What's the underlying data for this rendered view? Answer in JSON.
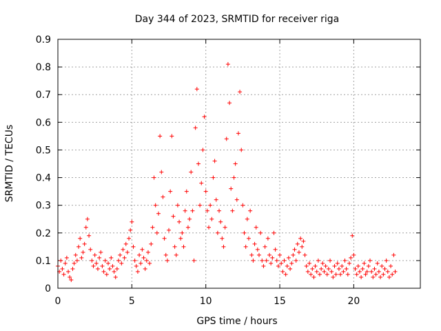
{
  "chart_data": {
    "type": "scatter",
    "title": "Day 344 of 2023, SRMTID for receiver riga",
    "xlabel": "GPS time / hours",
    "ylabel": "SRMTID / TECUs",
    "xlim": [
      0,
      24.5
    ],
    "ylim": [
      0,
      0.9
    ],
    "xticks": [
      0,
      5,
      10,
      15,
      20
    ],
    "xtick_labels": [
      "0",
      "5",
      "10",
      "15",
      "20"
    ],
    "yticks": [
      0,
      0.1,
      0.2,
      0.3,
      0.4,
      0.5,
      0.6,
      0.7,
      0.8,
      0.9
    ],
    "ytick_labels": [
      "0",
      "0.1",
      "0.2",
      "0.3",
      "0.4",
      "0.5",
      "0.6",
      "0.7",
      "0.8",
      "0.9"
    ],
    "grid": true,
    "marker": "+",
    "color": "#ff0000",
    "series": [
      {
        "name": "SRMTID",
        "points": [
          [
            0.0,
            0.08
          ],
          [
            0.1,
            0.06
          ],
          [
            0.2,
            0.1
          ],
          [
            0.3,
            0.07
          ],
          [
            0.4,
            0.05
          ],
          [
            0.5,
            0.09
          ],
          [
            0.6,
            0.11
          ],
          [
            0.7,
            0.06
          ],
          [
            0.8,
            0.04
          ],
          [
            0.9,
            0.03
          ],
          [
            1.0,
            0.07
          ],
          [
            1.1,
            0.09
          ],
          [
            1.2,
            0.12
          ],
          [
            1.3,
            0.1
          ],
          [
            1.4,
            0.15
          ],
          [
            1.5,
            0.18
          ],
          [
            1.6,
            0.11
          ],
          [
            1.7,
            0.13
          ],
          [
            1.8,
            0.16
          ],
          [
            1.9,
            0.22
          ],
          [
            2.0,
            0.25
          ],
          [
            2.1,
            0.19
          ],
          [
            2.2,
            0.14
          ],
          [
            2.3,
            0.1
          ],
          [
            2.4,
            0.08
          ],
          [
            2.5,
            0.12
          ],
          [
            2.6,
            0.09
          ],
          [
            2.7,
            0.07
          ],
          [
            2.8,
            0.11
          ],
          [
            2.9,
            0.13
          ],
          [
            3.0,
            0.08
          ],
          [
            3.1,
            0.06
          ],
          [
            3.2,
            0.1
          ],
          [
            3.3,
            0.05
          ],
          [
            3.4,
            0.09
          ],
          [
            3.5,
            0.07
          ],
          [
            3.6,
            0.11
          ],
          [
            3.7,
            0.08
          ],
          [
            3.8,
            0.06
          ],
          [
            3.9,
            0.04
          ],
          [
            4.0,
            0.07
          ],
          [
            4.1,
            0.1
          ],
          [
            4.2,
            0.12
          ],
          [
            4.3,
            0.09
          ],
          [
            4.4,
            0.14
          ],
          [
            4.5,
            0.11
          ],
          [
            4.6,
            0.16
          ],
          [
            4.7,
            0.13
          ],
          [
            4.8,
            0.18
          ],
          [
            4.9,
            0.21
          ],
          [
            5.0,
            0.24
          ],
          [
            5.1,
            0.15
          ],
          [
            5.2,
            0.1
          ],
          [
            5.3,
            0.08
          ],
          [
            5.4,
            0.06
          ],
          [
            5.5,
            0.12
          ],
          [
            5.6,
            0.09
          ],
          [
            5.7,
            0.14
          ],
          [
            5.8,
            0.11
          ],
          [
            5.9,
            0.07
          ],
          [
            6.0,
            0.1
          ],
          [
            6.1,
            0.13
          ],
          [
            6.2,
            0.09
          ],
          [
            6.3,
            0.16
          ],
          [
            6.4,
            0.22
          ],
          [
            6.5,
            0.4
          ],
          [
            6.6,
            0.3
          ],
          [
            6.7,
            0.2
          ],
          [
            6.8,
            0.27
          ],
          [
            6.9,
            0.55
          ],
          [
            7.0,
            0.42
          ],
          [
            7.1,
            0.33
          ],
          [
            7.2,
            0.18
          ],
          [
            7.3,
            0.12
          ],
          [
            7.4,
            0.1
          ],
          [
            7.5,
            0.21
          ],
          [
            7.6,
            0.35
          ],
          [
            7.7,
            0.55
          ],
          [
            7.8,
            0.26
          ],
          [
            7.9,
            0.15
          ],
          [
            8.0,
            0.12
          ],
          [
            8.1,
            0.3
          ],
          [
            8.2,
            0.24
          ],
          [
            8.3,
            0.18
          ],
          [
            8.4,
            0.2
          ],
          [
            8.5,
            0.15
          ],
          [
            8.6,
            0.28
          ],
          [
            8.7,
            0.35
          ],
          [
            8.8,
            0.22
          ],
          [
            8.9,
            0.25
          ],
          [
            9.0,
            0.42
          ],
          [
            9.1,
            0.28
          ],
          [
            9.2,
            0.1
          ],
          [
            9.3,
            0.58
          ],
          [
            9.4,
            0.72
          ],
          [
            9.5,
            0.45
          ],
          [
            9.6,
            0.3
          ],
          [
            9.7,
            0.38
          ],
          [
            9.8,
            0.5
          ],
          [
            9.9,
            0.62
          ],
          [
            10.0,
            0.35
          ],
          [
            10.1,
            0.28
          ],
          [
            10.2,
            0.22
          ],
          [
            10.3,
            0.3
          ],
          [
            10.4,
            0.25
          ],
          [
            10.5,
            0.4
          ],
          [
            10.6,
            0.46
          ],
          [
            10.7,
            0.32
          ],
          [
            10.8,
            0.2
          ],
          [
            10.9,
            0.28
          ],
          [
            11.0,
            0.24
          ],
          [
            11.1,
            0.18
          ],
          [
            11.2,
            0.15
          ],
          [
            11.3,
            0.22
          ],
          [
            11.4,
            0.54
          ],
          [
            11.5,
            0.81
          ],
          [
            11.6,
            0.67
          ],
          [
            11.7,
            0.36
          ],
          [
            11.8,
            0.28
          ],
          [
            11.9,
            0.4
          ],
          [
            12.0,
            0.45
          ],
          [
            12.1,
            0.32
          ],
          [
            12.2,
            0.56
          ],
          [
            12.3,
            0.71
          ],
          [
            12.4,
            0.5
          ],
          [
            12.5,
            0.3
          ],
          [
            12.6,
            0.2
          ],
          [
            12.7,
            0.15
          ],
          [
            12.8,
            0.25
          ],
          [
            12.9,
            0.18
          ],
          [
            13.0,
            0.28
          ],
          [
            13.1,
            0.12
          ],
          [
            13.2,
            0.1
          ],
          [
            13.3,
            0.16
          ],
          [
            13.4,
            0.22
          ],
          [
            13.5,
            0.14
          ],
          [
            13.6,
            0.12
          ],
          [
            13.7,
            0.2
          ],
          [
            13.8,
            0.1
          ],
          [
            13.9,
            0.08
          ],
          [
            14.0,
            0.15
          ],
          [
            14.1,
            0.1
          ],
          [
            14.2,
            0.18
          ],
          [
            14.3,
            0.12
          ],
          [
            14.4,
            0.09
          ],
          [
            14.5,
            0.11
          ],
          [
            14.6,
            0.2
          ],
          [
            14.7,
            0.14
          ],
          [
            14.8,
            0.1
          ],
          [
            14.9,
            0.08
          ],
          [
            15.0,
            0.12
          ],
          [
            15.1,
            0.09
          ],
          [
            15.2,
            0.06
          ],
          [
            15.3,
            0.1
          ],
          [
            15.4,
            0.05
          ],
          [
            15.5,
            0.08
          ],
          [
            15.6,
            0.11
          ],
          [
            15.7,
            0.07
          ],
          [
            15.8,
            0.09
          ],
          [
            15.9,
            0.12
          ],
          [
            16.0,
            0.14
          ],
          [
            16.1,
            0.1
          ],
          [
            16.2,
            0.16
          ],
          [
            16.3,
            0.13
          ],
          [
            16.4,
            0.18
          ],
          [
            16.5,
            0.15
          ],
          [
            16.6,
            0.17
          ],
          [
            16.7,
            0.12
          ],
          [
            16.8,
            0.08
          ],
          [
            16.9,
            0.06
          ],
          [
            17.0,
            0.09
          ],
          [
            17.1,
            0.05
          ],
          [
            17.2,
            0.07
          ],
          [
            17.3,
            0.04
          ],
          [
            17.4,
            0.08
          ],
          [
            17.5,
            0.06
          ],
          [
            17.6,
            0.1
          ],
          [
            17.7,
            0.05
          ],
          [
            17.8,
            0.07
          ],
          [
            17.9,
            0.09
          ],
          [
            18.0,
            0.06
          ],
          [
            18.1,
            0.08
          ],
          [
            18.2,
            0.05
          ],
          [
            18.3,
            0.07
          ],
          [
            18.4,
            0.1
          ],
          [
            18.5,
            0.06
          ],
          [
            18.6,
            0.04
          ],
          [
            18.7,
            0.08
          ],
          [
            18.8,
            0.05
          ],
          [
            18.9,
            0.09
          ],
          [
            19.0,
            0.07
          ],
          [
            19.1,
            0.05
          ],
          [
            19.2,
            0.08
          ],
          [
            19.3,
            0.06
          ],
          [
            19.4,
            0.1
          ],
          [
            19.5,
            0.07
          ],
          [
            19.6,
            0.05
          ],
          [
            19.7,
            0.09
          ],
          [
            19.8,
            0.11
          ],
          [
            19.9,
            0.19
          ],
          [
            20.0,
            0.12
          ],
          [
            20.1,
            0.07
          ],
          [
            20.2,
            0.05
          ],
          [
            20.3,
            0.08
          ],
          [
            20.4,
            0.06
          ],
          [
            20.5,
            0.04
          ],
          [
            20.6,
            0.07
          ],
          [
            20.7,
            0.09
          ],
          [
            20.8,
            0.05
          ],
          [
            20.9,
            0.06
          ],
          [
            21.0,
            0.08
          ],
          [
            21.1,
            0.1
          ],
          [
            21.2,
            0.06
          ],
          [
            21.3,
            0.04
          ],
          [
            21.4,
            0.07
          ],
          [
            21.5,
            0.05
          ],
          [
            21.6,
            0.09
          ],
          [
            21.7,
            0.06
          ],
          [
            21.8,
            0.04
          ],
          [
            21.9,
            0.08
          ],
          [
            22.0,
            0.05
          ],
          [
            22.1,
            0.07
          ],
          [
            22.2,
            0.1
          ],
          [
            22.3,
            0.06
          ],
          [
            22.4,
            0.04
          ],
          [
            22.5,
            0.08
          ],
          [
            22.6,
            0.05
          ],
          [
            22.7,
            0.12
          ],
          [
            22.8,
            0.06
          ]
        ]
      }
    ]
  }
}
